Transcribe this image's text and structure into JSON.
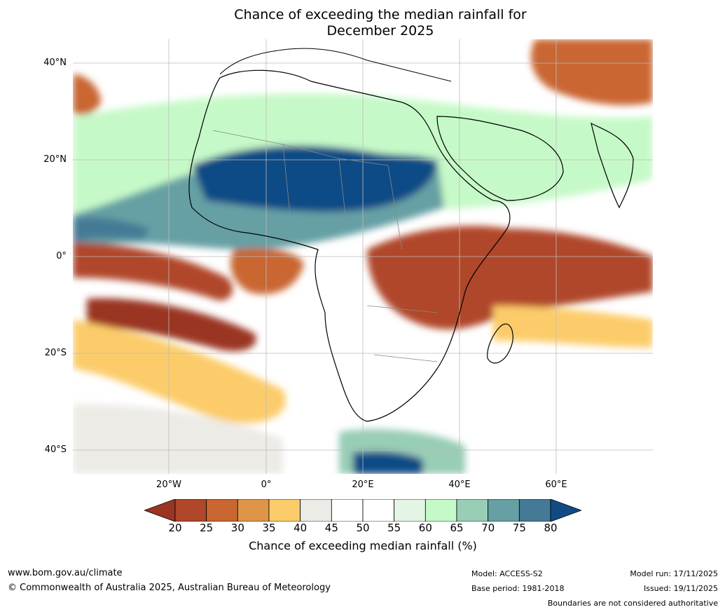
{
  "title": {
    "line1": "Chance of exceeding the median rainfall for",
    "line2": "December 2025"
  },
  "map": {
    "lat_labels": [
      "40°N",
      "20°N",
      "0°",
      "20°S",
      "40°S"
    ],
    "lon_labels": [
      "20°W",
      "0°",
      "20°E",
      "40°E",
      "60°E"
    ]
  },
  "colorbar": {
    "ticks": [
      "20",
      "25",
      "30",
      "35",
      "40",
      "45",
      "50",
      "55",
      "60",
      "65",
      "70",
      "75",
      "80"
    ],
    "colors": [
      "#9a3520",
      "#b0472a",
      "#c96631",
      "#df9548",
      "#fccc6a",
      "#edebe6",
      "#ffffff",
      "#ffffff",
      "#e4f5e6",
      "#c6f9c8",
      "#98cdb6",
      "#66a0a4",
      "#457a96",
      "#104b86"
    ],
    "label": "Chance of exceeding median rainfall (%)"
  },
  "footer": {
    "website": "www.bom.gov.au/climate",
    "copyright": "© Commonwealth of Australia 2025, Australian Bureau of Meteorology",
    "model": "Model: ACCESS-S2",
    "base_period": "Base period: 1981-2018",
    "model_run": "Model run: 17/11/2025",
    "issued": "Issued: 19/11/2025",
    "disclaimer": "Boundaries are not considered authoritative"
  }
}
